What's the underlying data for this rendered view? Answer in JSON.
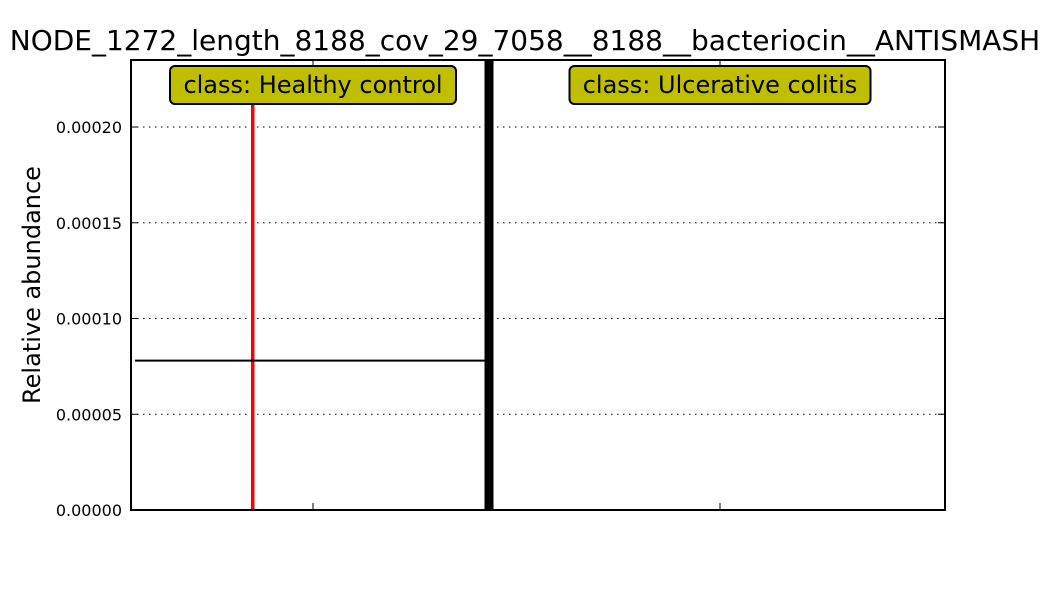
{
  "chart_data": {
    "type": "bar",
    "title": "NODE_1272_length_8188_cov_29_7058__8188__bacteriocin__ANTISMASH",
    "ylabel": "Relative abundance",
    "xlabel": "",
    "ylim": [
      0,
      0.000235
    ],
    "yticks": [
      "0.00000",
      "0.00005",
      "0.00010",
      "0.00015",
      "0.00020"
    ],
    "ytick_values": [
      0,
      5e-05,
      0.0001,
      0.00015,
      0.0002
    ],
    "grid": true,
    "classes": [
      {
        "label": "class: Healthy control",
        "mean": 7.8e-05
      },
      {
        "label": "class: Ulcerative colitis",
        "mean": null
      }
    ],
    "samples": [
      {
        "class_index": 0,
        "value": 0.00023,
        "color": "#ff0000"
      }
    ],
    "colors": {
      "class_box": "#bfbf00",
      "class_divider": "#000000",
      "sample_bar": "#ff0000"
    }
  }
}
